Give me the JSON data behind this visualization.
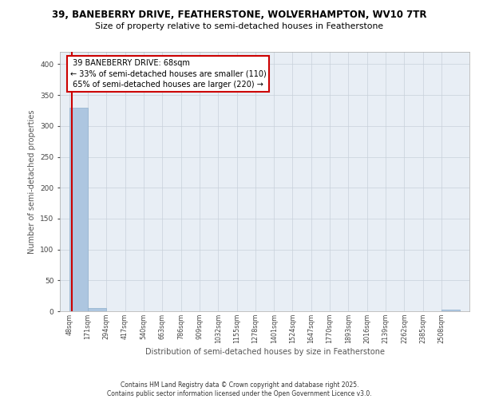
{
  "title_line1": "39, BANEBERRY DRIVE, FEATHERSTONE, WOLVERHAMPTON, WV10 7TR",
  "title_line2": "Size of property relative to semi-detached houses in Featherstone",
  "xlabel": "Distribution of semi-detached houses by size in Featherstone",
  "ylabel": "Number of semi-detached properties",
  "bar_edges": [
    48,
    171,
    294,
    417,
    540,
    663,
    786,
    909,
    1032,
    1155,
    1278,
    1401,
    1524,
    1647,
    1770,
    1893,
    2016,
    2139,
    2262,
    2385,
    2508
  ],
  "bar_heights": [
    330,
    5,
    0,
    0,
    0,
    0,
    0,
    0,
    0,
    0,
    0,
    0,
    0,
    0,
    0,
    0,
    0,
    0,
    0,
    3
  ],
  "bar_color": "#adc6e0",
  "property_size": 68,
  "property_label": "39 BANEBERRY DRIVE: 68sqm",
  "pct_smaller": 33,
  "n_smaller": 110,
  "pct_larger": 65,
  "n_larger": 220,
  "red_line_color": "#cc0000",
  "grid_color": "#c8d0da",
  "bg_color": "#e8eef5",
  "ylim": [
    0,
    420
  ],
  "yticks": [
    0,
    50,
    100,
    150,
    200,
    250,
    300,
    350,
    400
  ],
  "footer_line1": "Contains HM Land Registry data © Crown copyright and database right 2025.",
  "footer_line2": "Contains public sector information licensed under the Open Government Licence v3.0."
}
